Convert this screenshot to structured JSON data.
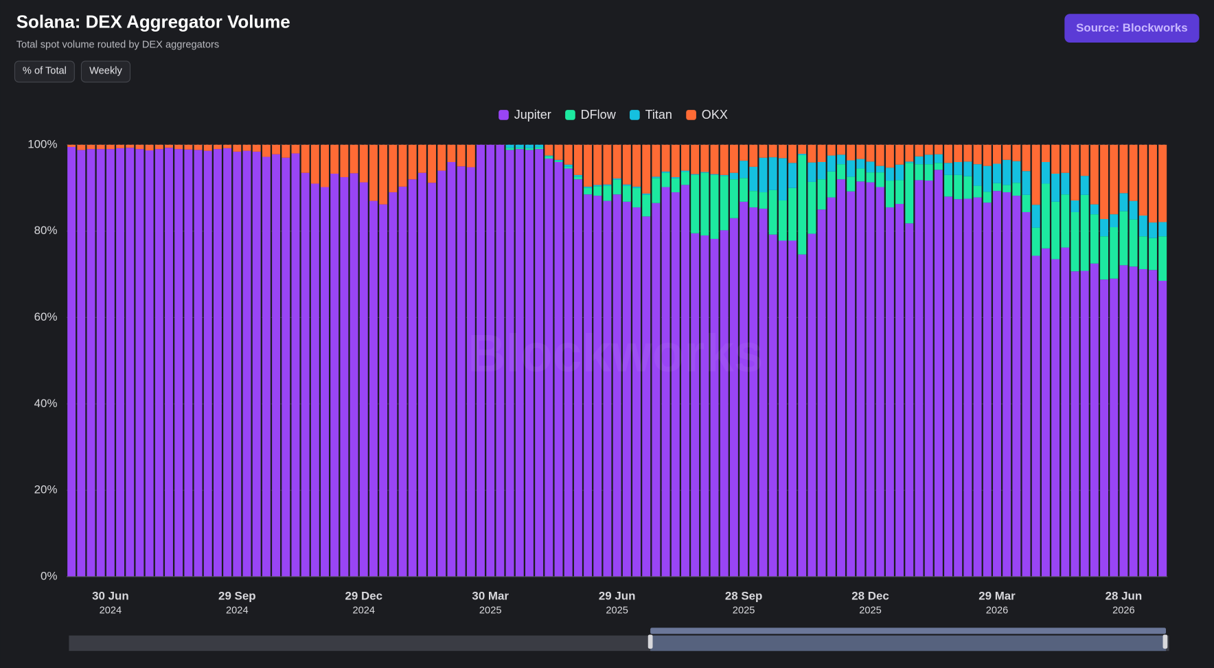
{
  "header": {
    "title": "Solana: DEX Aggregator Volume",
    "subtitle": "Total spot volume routed by DEX aggregators",
    "buttons": [
      "% of Total",
      "Weekly"
    ],
    "source": "Source: Blockworks",
    "watermark": "Blockworks"
  },
  "chart_data": {
    "type": "stacked_bar",
    "categories": [
      null,
      null,
      null,
      null,
      "30 Jun 2024",
      null,
      null,
      null,
      null,
      null,
      null,
      null,
      null,
      null,
      null,
      null,
      null,
      "29 Sep 2024",
      null,
      null,
      null,
      null,
      null,
      null,
      null,
      null,
      null,
      null,
      null,
      null,
      "29 Dec 2024",
      null,
      null,
      null,
      null,
      null,
      null,
      null,
      null,
      null,
      null,
      null,
      null,
      "30 Mar 2025",
      null,
      null,
      null,
      null,
      null,
      null,
      null,
      null,
      null,
      null,
      null,
      null,
      "29 Jun 2025",
      null,
      null,
      null,
      null,
      null,
      null,
      null,
      null,
      null,
      null,
      null,
      null,
      "28 Sep 2025",
      null,
      null,
      null,
      null,
      null,
      null,
      null,
      null,
      null,
      null,
      null,
      null,
      "28 Dec 2025",
      null,
      null,
      null,
      null,
      null,
      null,
      null,
      null,
      null,
      null,
      null,
      null,
      "29 Mar 2026",
      null,
      null,
      null,
      null,
      null,
      null,
      null,
      null,
      null,
      null,
      null,
      null,
      "28 Jun 2026",
      null,
      null,
      null,
      null
    ],
    "series": [
      {
        "name": "Jupiter",
        "color": "#9945f5",
        "values": [
          99.5,
          98.8,
          99,
          99,
          99,
          99.2,
          99.3,
          99,
          98.7,
          99,
          99.3,
          99,
          98.9,
          98.8,
          98.6,
          99,
          99.2,
          98.4,
          98.6,
          98.4,
          97.2,
          97.8,
          97,
          98,
          93.5,
          91,
          90.2,
          93.3,
          92.5,
          93.4,
          91.3,
          87,
          86.2,
          89,
          90.3,
          92,
          93.5,
          91.2,
          94,
          96,
          95,
          94.8,
          100,
          100,
          100,
          98.8,
          99,
          98.8,
          99,
          96.8,
          96,
          94.5,
          92,
          88.5,
          88.2,
          87,
          88.5,
          86.8,
          85.5,
          83.4,
          86.5,
          90.2,
          89,
          90.7,
          79.5,
          79,
          78.2,
          80.2,
          83,
          86.8,
          85.5,
          85.2,
          79.2,
          77.8,
          77.8,
          74.6,
          79.4,
          85,
          87.8,
          92,
          89.2,
          91.5,
          91.3,
          90.2,
          85.5,
          86.3,
          81.8,
          91.8,
          91.7,
          94.2,
          88,
          87.4,
          87.5,
          87.8,
          86.6,
          89.3,
          89,
          88.2,
          84.4,
          74.3,
          76,
          73.5,
          76.2,
          70.7,
          70.8,
          72.5,
          68.8,
          69,
          72.1,
          71.8,
          71.2,
          71,
          68.5
        ]
      },
      {
        "name": "DFlow",
        "color": "#1de9a0",
        "values": [
          0,
          0,
          0,
          0,
          0,
          0,
          0,
          0,
          0,
          0,
          0,
          0,
          0,
          0,
          0,
          0,
          0,
          0,
          0,
          0,
          0,
          0,
          0,
          0,
          0,
          0,
          0,
          0,
          0,
          0,
          0,
          0,
          0,
          0,
          0,
          0,
          0,
          0,
          0,
          0,
          0,
          0,
          0,
          0,
          0,
          0.5,
          0.3,
          0.4,
          0.4,
          0.5,
          0.3,
          0.4,
          0.6,
          1.5,
          2.2,
          3.5,
          3.4,
          3.7,
          4.5,
          5,
          5.8,
          3.3,
          3.2,
          3,
          13.5,
          14.5,
          14.8,
          12.6,
          9,
          5.5,
          3.8,
          3.8,
          10.3,
          9.3,
          12.2,
          23,
          12,
          7,
          6,
          3.5,
          3.4,
          3,
          2.3,
          3.4,
          6.2,
          5.5,
          14,
          3.7,
          3.8,
          1.6,
          5,
          5.6,
          5.2,
          2.7,
          2.5,
          1.8,
          1.7,
          3,
          4,
          6.5,
          15,
          13.3,
          12.3,
          13.7,
          17.6,
          11.4,
          10,
          11.9,
          12.5,
          10.9,
          7.6,
          7.4,
          10.3
        ]
      },
      {
        "name": "Titan",
        "color": "#15c0e0",
        "values": [
          0,
          0,
          0,
          0,
          0,
          0,
          0,
          0,
          0,
          0,
          0,
          0,
          0,
          0,
          0,
          0,
          0,
          0,
          0,
          0,
          0,
          0,
          0,
          0,
          0,
          0,
          0,
          0,
          0,
          0,
          0,
          0,
          0,
          0,
          0,
          0,
          0,
          0,
          0,
          0,
          0,
          0,
          0,
          0,
          0,
          0.7,
          0.7,
          0.8,
          0.6,
          0.2,
          0.2,
          0.5,
          0.4,
          0.3,
          0.3,
          0.3,
          0.3,
          0.3,
          0.3,
          0.3,
          0.3,
          0.3,
          0.3,
          0.3,
          0.2,
          0.2,
          0.2,
          0.2,
          1.5,
          4,
          5.6,
          8,
          7.6,
          9.8,
          5.8,
          0.3,
          4.5,
          4,
          3.7,
          2.2,
          3.8,
          2.2,
          2.5,
          1.5,
          3,
          3.6,
          0.3,
          1.8,
          2.2,
          2,
          2.8,
          3,
          3.4,
          5,
          6,
          4.5,
          5.8,
          5,
          5.5,
          5.3,
          5,
          6.5,
          5,
          2.7,
          4.4,
          2.3,
          4,
          3,
          4.2,
          4.3,
          4.8,
          3.6,
          3.3
        ]
      },
      {
        "name": "OKX",
        "color": "#ff6b35",
        "values": [
          0.5,
          1.2,
          1,
          1,
          1,
          0.8,
          0.7,
          1,
          1.3,
          1,
          0.7,
          1,
          1.1,
          1.2,
          1.4,
          1,
          0.8,
          1.6,
          1.4,
          1.6,
          2.8,
          2.2,
          3,
          2,
          6.5,
          9,
          9.8,
          6.7,
          7.5,
          6.6,
          8.7,
          13,
          13.8,
          11,
          9.7,
          8,
          6.5,
          8.8,
          6,
          4,
          5,
          5.2,
          0,
          0,
          0,
          0,
          0,
          0,
          0,
          2.5,
          3.5,
          4.6,
          7,
          9.7,
          9.3,
          9.2,
          7.8,
          9.2,
          9.7,
          11.3,
          7.4,
          6.2,
          7.5,
          6,
          6.8,
          6.3,
          6.8,
          7,
          6.5,
          3.7,
          5.1,
          3,
          2.9,
          3.1,
          4.2,
          2.1,
          4.1,
          4,
          2.5,
          2.3,
          3.6,
          3.3,
          3.9,
          4.9,
          5.3,
          4.6,
          3.9,
          2.7,
          2.3,
          2.2,
          4.2,
          4,
          3.9,
          4.5,
          4.9,
          4.4,
          3.5,
          3.8,
          6.1,
          13.9,
          4,
          6.7,
          6.5,
          12.9,
          7.2,
          13.8,
          17.2,
          16.1,
          11.2,
          13,
          16.4,
          18,
          17.9
        ]
      }
    ],
    "ylim": [
      0,
      100
    ],
    "yticks": [
      {
        "value": 0,
        "label": "0%"
      },
      {
        "value": 20,
        "label": "20%"
      },
      {
        "value": 40,
        "label": "40%"
      },
      {
        "value": 60,
        "label": "60%"
      },
      {
        "value": 80,
        "label": "80%"
      },
      {
        "value": 100,
        "label": "100%"
      }
    ],
    "grid": true,
    "legend": "top"
  }
}
